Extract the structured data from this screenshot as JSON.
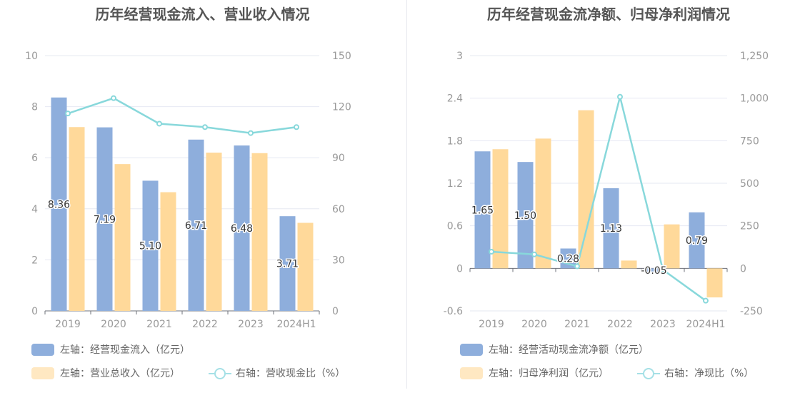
{
  "charts": {
    "left_title": "历年经营现金流入、营业收入情况",
    "right_title": "历年经营现金流净额、归母净利润情况"
  },
  "colors": {
    "bar_primary": "#8eaedc",
    "bar_secondary": "#ffd99a",
    "line": "#88d8db",
    "axis_text": "#999999",
    "grid": "#e6e8f2"
  },
  "legends": {
    "left": {
      "item1": "左轴：经营现金流入（亿元）",
      "item2": "左轴：营业总收入（亿元）",
      "item3": "右轴：营收现金比（%）"
    },
    "right": {
      "item1": "左轴：经营活动现金流净额（亿元）",
      "item2": "左轴：归母净利润（亿元）",
      "item3": "右轴：净现比（%）"
    }
  },
  "chart_data": [
    {
      "type": "bar",
      "title": "历年经营现金流入、营业收入情况",
      "categories": [
        "2019",
        "2020",
        "2021",
        "2022",
        "2023",
        "2024H1"
      ],
      "series": [
        {
          "name": "左轴：经营现金流入（亿元）",
          "axis": "left",
          "kind": "bar",
          "values": [
            8.36,
            7.19,
            5.1,
            6.71,
            6.48,
            3.71
          ],
          "labels": [
            "8.36",
            "7.19",
            "5.10",
            "6.71",
            "6.48",
            "3.71"
          ]
        },
        {
          "name": "左轴：营业总收入（亿元）",
          "axis": "left",
          "kind": "bar",
          "values": [
            7.2,
            5.75,
            4.65,
            6.2,
            6.18,
            3.45
          ]
        },
        {
          "name": "右轴：营收现金比（%）",
          "axis": "right",
          "kind": "line",
          "values": [
            116,
            125,
            110,
            108,
            104.5,
            108
          ]
        }
      ],
      "left_axis": {
        "ylim": [
          0,
          10
        ],
        "ticks": [
          "0",
          "2",
          "4",
          "6",
          "8",
          "10"
        ]
      },
      "right_axis": {
        "ylim": [
          0,
          150
        ],
        "ticks": [
          "0",
          "30",
          "60",
          "90",
          "120",
          "150"
        ]
      },
      "grid": true,
      "legend_position": "bottom"
    },
    {
      "type": "bar",
      "title": "历年经营现金流净额、归母净利润情况",
      "categories": [
        "2019",
        "2020",
        "2021",
        "2022",
        "2023",
        "2024H1"
      ],
      "series": [
        {
          "name": "左轴：经营活动现金流净额（亿元）",
          "axis": "left",
          "kind": "bar",
          "values": [
            1.65,
            1.5,
            0.28,
            1.13,
            -0.05,
            0.79
          ],
          "labels": [
            "1.65",
            "1.50",
            "0.28",
            "1.13",
            "-0.05",
            "0.79"
          ]
        },
        {
          "name": "左轴：归母净利润（亿元）",
          "axis": "left",
          "kind": "bar",
          "values": [
            1.68,
            1.83,
            2.23,
            0.11,
            0.62,
            -0.41
          ]
        },
        {
          "name": "右轴：净现比（%）",
          "axis": "right",
          "kind": "line",
          "values": [
            98,
            82,
            12,
            1008,
            -8,
            -190
          ]
        }
      ],
      "left_axis": {
        "ylim": [
          -0.6,
          3
        ],
        "ticks": [
          "-0.6",
          "0",
          "0.6",
          "1.2",
          "1.8",
          "2.4",
          "3"
        ]
      },
      "right_axis": {
        "ylim": [
          -250,
          1250
        ],
        "ticks": [
          "-250",
          "0",
          "250",
          "500",
          "750",
          "1,000",
          "1,250"
        ]
      },
      "grid": true,
      "legend_position": "bottom"
    }
  ]
}
